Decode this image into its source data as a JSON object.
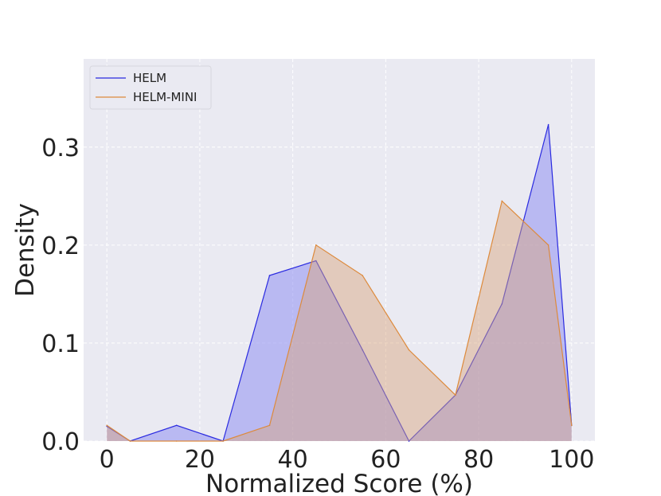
{
  "chart_data": {
    "type": "area",
    "xlabel": "Normalized Score (%)",
    "ylabel": "Density",
    "xlim": [
      -5,
      105
    ],
    "ylim": [
      0,
      0.39
    ],
    "x_ticks": [
      {
        "value": 0,
        "label": "0"
      },
      {
        "value": 20,
        "label": "20"
      },
      {
        "value": 40,
        "label": "40"
      },
      {
        "value": 60,
        "label": "60"
      },
      {
        "value": 80,
        "label": "80"
      },
      {
        "value": 100,
        "label": "100"
      }
    ],
    "y_ticks": [
      {
        "value": 0.0,
        "label": "0.0"
      },
      {
        "value": 0.1,
        "label": "0.1"
      },
      {
        "value": 0.2,
        "label": "0.2"
      },
      {
        "value": 0.3,
        "label": "0.3"
      }
    ],
    "grid": true,
    "legend_position": "top-left",
    "background_color": "#eaeaf2",
    "series": [
      {
        "name": "HELM",
        "line_color": "#2a2ae0",
        "fill_color": "#8f8ff2",
        "fill_opacity": 0.55,
        "x": [
          0,
          5,
          15,
          25,
          35,
          45,
          55,
          65,
          75,
          85,
          95,
          100
        ],
        "y": [
          0.015,
          0.0,
          0.016,
          0.0,
          0.169,
          0.184,
          0.093,
          0.0,
          0.047,
          0.14,
          0.323,
          0.016
        ]
      },
      {
        "name": "HELM-MINI",
        "line_color": "#dd8a3c",
        "fill_color": "#d9a47a",
        "fill_opacity": 0.45,
        "x": [
          0,
          5,
          15,
          25,
          35,
          45,
          55,
          65,
          75,
          85,
          95,
          100
        ],
        "y": [
          0.016,
          0.0,
          0.0,
          0.0,
          0.016,
          0.2,
          0.169,
          0.093,
          0.047,
          0.245,
          0.2,
          0.016
        ]
      }
    ]
  }
}
